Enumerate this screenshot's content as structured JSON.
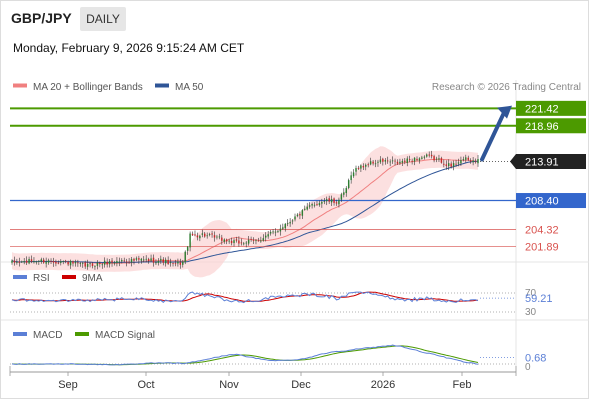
{
  "header": {
    "symbol": "GBP/JPY",
    "period": "DAILY",
    "timestamp": "Monday, February 9, 2026 9:15:24 AM CET"
  },
  "colors": {
    "ma20": "#f08080",
    "ma50": "#2f5597",
    "resistance": "#4c9a00",
    "pivot": "#3366cc",
    "support": "#d9534f",
    "price_tag": "#222222",
    "rsi": "#5b7fd6",
    "rsi_ma": "#cc0000",
    "macd": "#5b7fd6",
    "macd_signal": "#4c9a00",
    "arrow": "#2f5597",
    "band_fill": "#fbd5d5"
  },
  "chart_data": [
    {
      "type": "candlestick",
      "legend": [
        "MA 20 + Bollinger Bands",
        "MA 50"
      ],
      "legend_placement": "top-left",
      "watermark": "Research © 2026 Trading Central",
      "x_ticks": [
        "Sep",
        "Oct",
        "Nov",
        "Dec",
        "2026",
        "Feb"
      ],
      "ylim": [
        200,
        222.6
      ],
      "last_price": "213.91",
      "levels": [
        {
          "value": 221.42,
          "label": "221.42",
          "kind": "resistance"
        },
        {
          "value": 218.96,
          "label": "218.96",
          "kind": "resistance"
        },
        {
          "value": 208.4,
          "label": "208.40",
          "kind": "pivot"
        },
        {
          "value": 204.32,
          "label": "204.32",
          "kind": "support"
        },
        {
          "value": 201.89,
          "label": "201.89",
          "kind": "support"
        }
      ],
      "arrow": {
        "from": 214.2,
        "to": 221.8
      },
      "close_keypoints": [
        [
          0,
          199.6
        ],
        [
          10,
          199.9
        ],
        [
          20,
          199.8
        ],
        [
          30,
          199.2
        ],
        [
          38,
          199.6
        ],
        [
          45,
          199.9
        ],
        [
          55,
          200.0
        ],
        [
          62,
          199.9
        ],
        [
          66,
          199.3
        ],
        [
          70,
          199.7
        ],
        [
          73,
          203.4
        ],
        [
          78,
          203.6
        ],
        [
          85,
          203.0
        ],
        [
          92,
          202.4
        ],
        [
          100,
          202.7
        ],
        [
          108,
          204.0
        ],
        [
          112,
          205.1
        ],
        [
          118,
          206.5
        ],
        [
          123,
          207.8
        ],
        [
          128,
          208.4
        ],
        [
          133,
          208.2
        ],
        [
          136,
          209.3
        ],
        [
          140,
          212.7
        ],
        [
          146,
          213.6
        ],
        [
          152,
          214.0
        ],
        [
          158,
          213.7
        ],
        [
          164,
          214.2
        ],
        [
          170,
          214.6
        ],
        [
          176,
          214.0
        ],
        [
          180,
          213.2
        ],
        [
          184,
          214.3
        ],
        [
          188,
          214.0
        ],
        [
          191,
          214.0
        ]
      ]
    },
    {
      "type": "line",
      "name": "rsi",
      "legend": [
        "RSI",
        "9MA"
      ],
      "ticks": [
        "70",
        "30"
      ],
      "last_value": "59.21",
      "ylim": [
        30,
        70
      ]
    },
    {
      "type": "line",
      "name": "macd",
      "legend": [
        "MACD",
        "MACD Signal"
      ],
      "ticks": [
        "0"
      ],
      "last_value": "0.68"
    }
  ]
}
